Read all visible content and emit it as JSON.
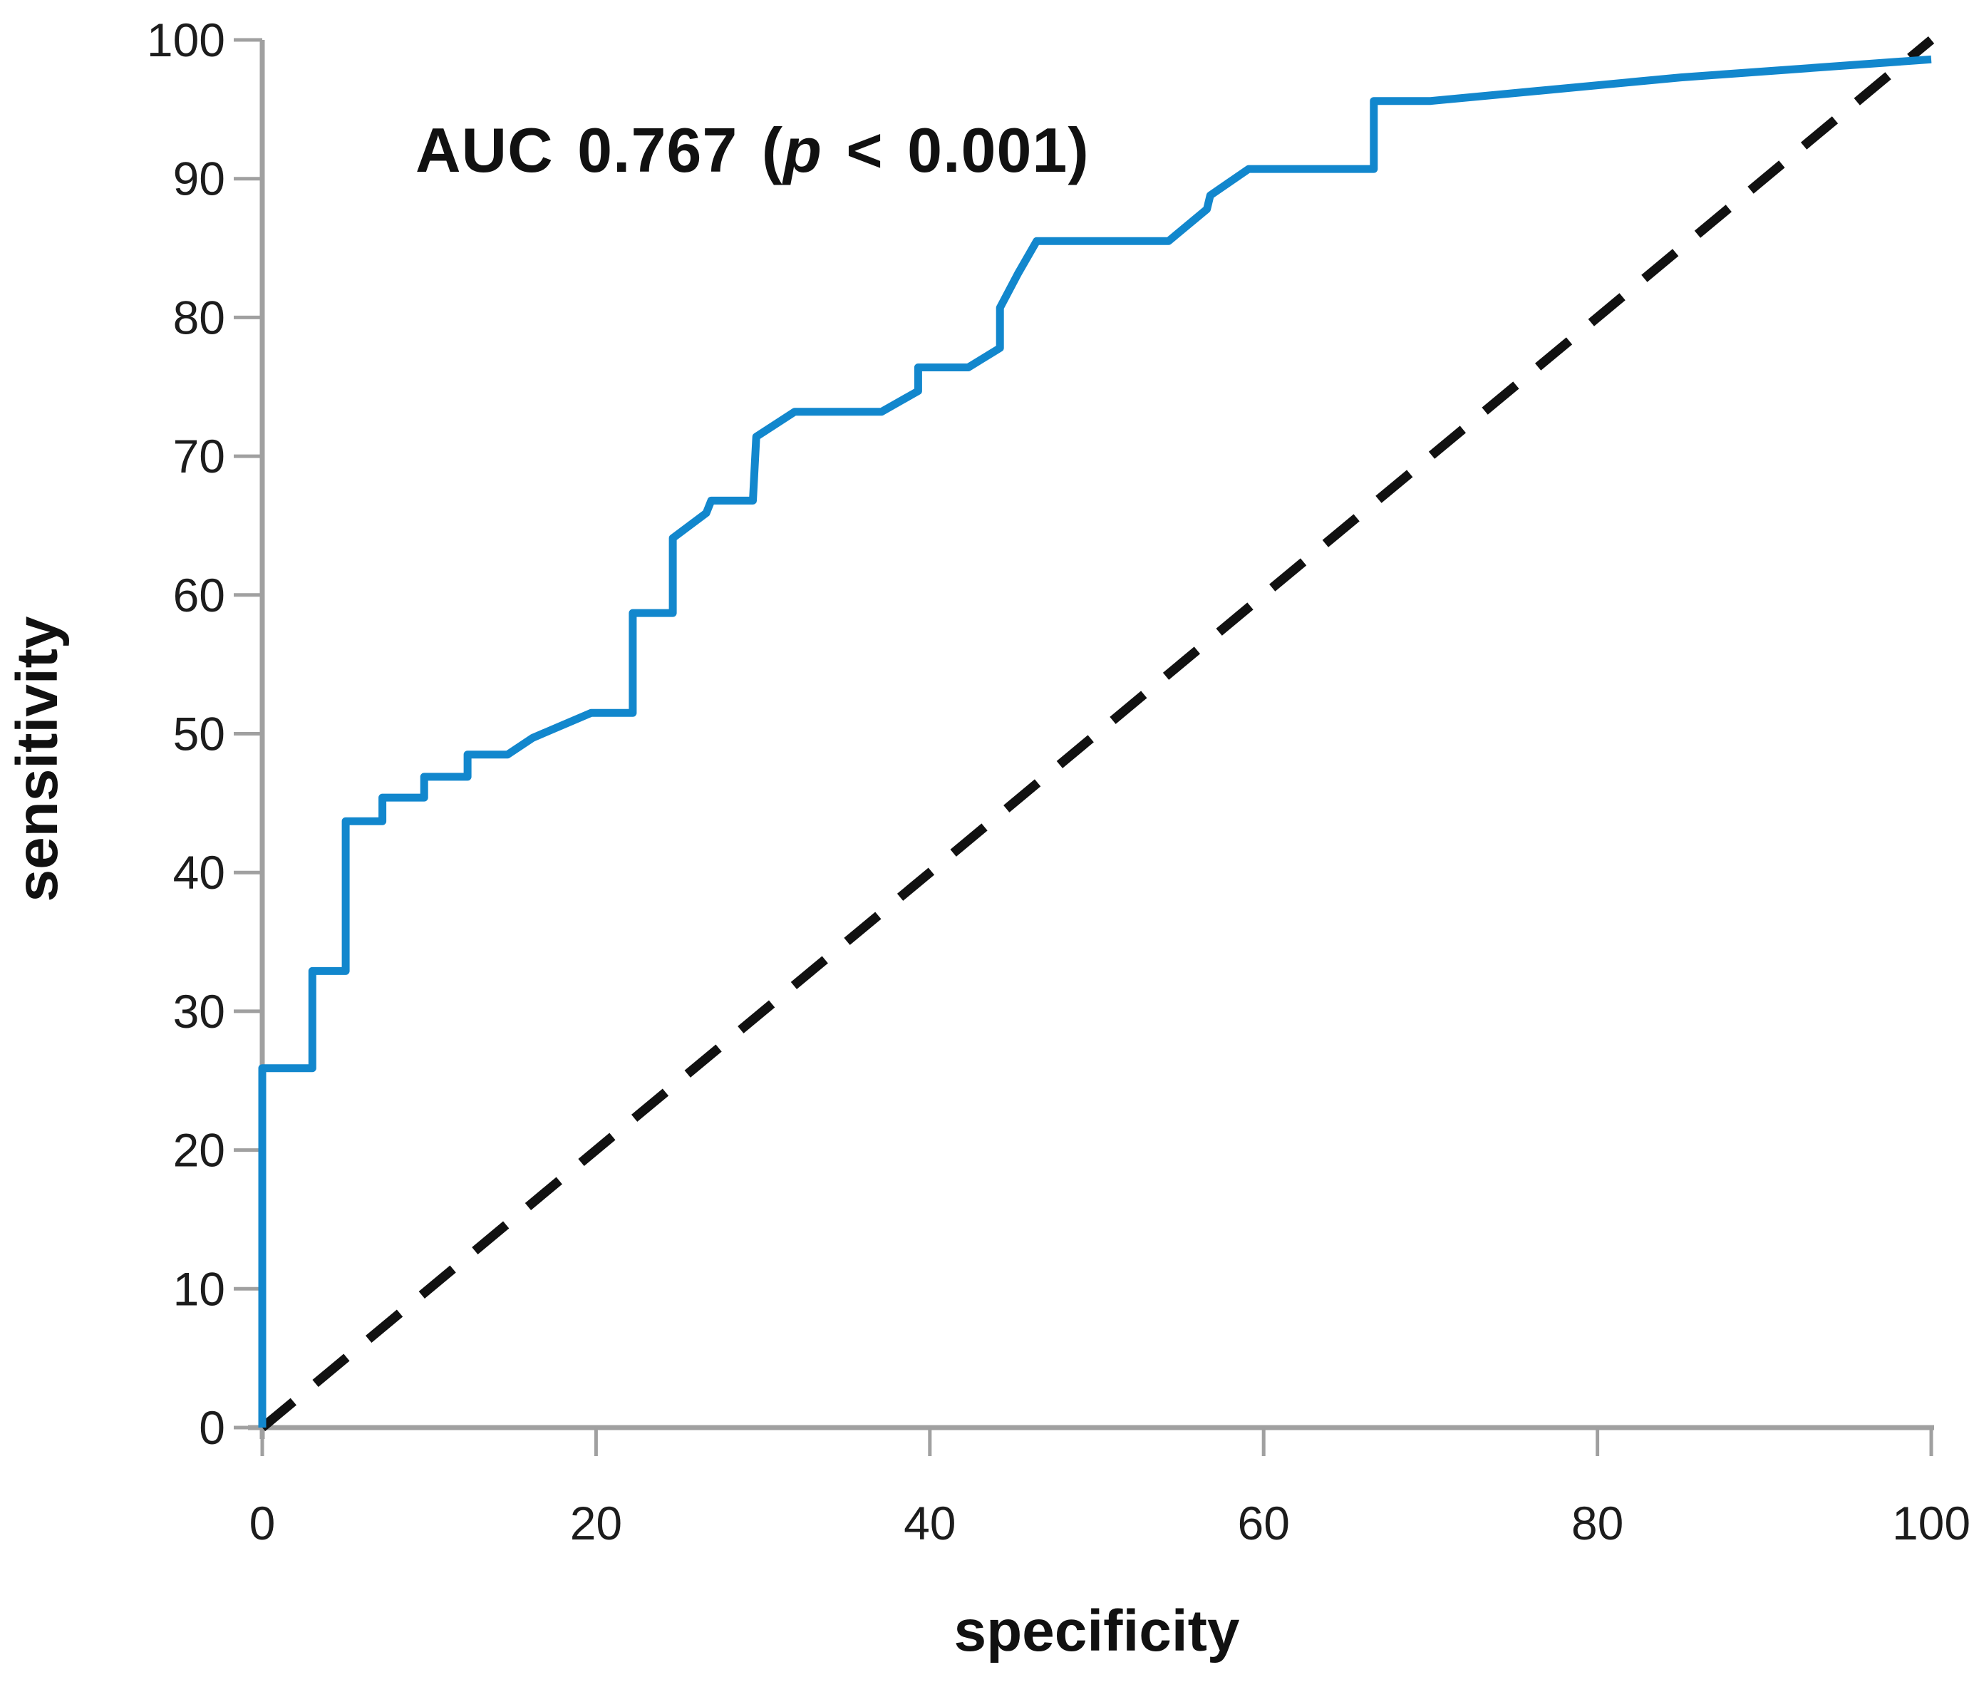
{
  "figure": {
    "annotation": {
      "prefix": "AUC 0.767 (",
      "p": "p",
      "suffix": " < 0.001)"
    }
  },
  "chart_data": {
    "type": "line",
    "title": "AUC 0.767 (p < 0.001)",
    "auc": 0.767,
    "p_value": "< 0.001",
    "xlabel": "specificity",
    "ylabel": "sensitivity",
    "xlim": [
      0,
      100
    ],
    "ylim": [
      0,
      100
    ],
    "x_ticks": [
      0,
      20,
      40,
      60,
      80,
      100
    ],
    "y_ticks": [
      0,
      10,
      20,
      30,
      40,
      50,
      60,
      70,
      80,
      90,
      100
    ],
    "grid": false,
    "legend": "none",
    "colors": {
      "roc": "#1287cd",
      "reference": "#111111",
      "axis": "#a0a0a0",
      "tick_text": "#1c1c1c"
    },
    "series": [
      {
        "name": "ROC curve",
        "style": "solid",
        "color_key": "roc",
        "points": [
          [
            0,
            0
          ],
          [
            0,
            25.9
          ],
          [
            3,
            25.9
          ],
          [
            3,
            32.9
          ],
          [
            5,
            32.9
          ],
          [
            5,
            43.7
          ],
          [
            7.2,
            43.7
          ],
          [
            7.2,
            45.4
          ],
          [
            9.7,
            45.4
          ],
          [
            9.7,
            46.9
          ],
          [
            12.3,
            46.9
          ],
          [
            12.3,
            48.5
          ],
          [
            14.7,
            48.5
          ],
          [
            16.2,
            49.7
          ],
          [
            19.7,
            51.5
          ],
          [
            22.2,
            51.5
          ],
          [
            22.2,
            58.7
          ],
          [
            24.6,
            58.7
          ],
          [
            24.6,
            64.1
          ],
          [
            26.6,
            65.9
          ],
          [
            26.9,
            66.8
          ],
          [
            29.4,
            66.8
          ],
          [
            29.6,
            71.4
          ],
          [
            31.9,
            73.2
          ],
          [
            37.1,
            73.2
          ],
          [
            39.3,
            74.7
          ],
          [
            39.3,
            76.4
          ],
          [
            42.3,
            76.4
          ],
          [
            44.2,
            77.8
          ],
          [
            44.2,
            80.7
          ],
          [
            45.3,
            83.2
          ],
          [
            46.4,
            85.5
          ],
          [
            54.3,
            85.5
          ],
          [
            56.6,
            87.8
          ],
          [
            56.8,
            88.8
          ],
          [
            59.1,
            90.7
          ],
          [
            66.6,
            90.7
          ],
          [
            66.6,
            95.6
          ],
          [
            70,
            95.6
          ],
          [
            85,
            97.3
          ],
          [
            100,
            98.6
          ]
        ]
      },
      {
        "name": "reference diagonal",
        "style": "dashed",
        "color_key": "reference",
        "points": [
          [
            0,
            0
          ],
          [
            100,
            100
          ]
        ]
      }
    ]
  }
}
